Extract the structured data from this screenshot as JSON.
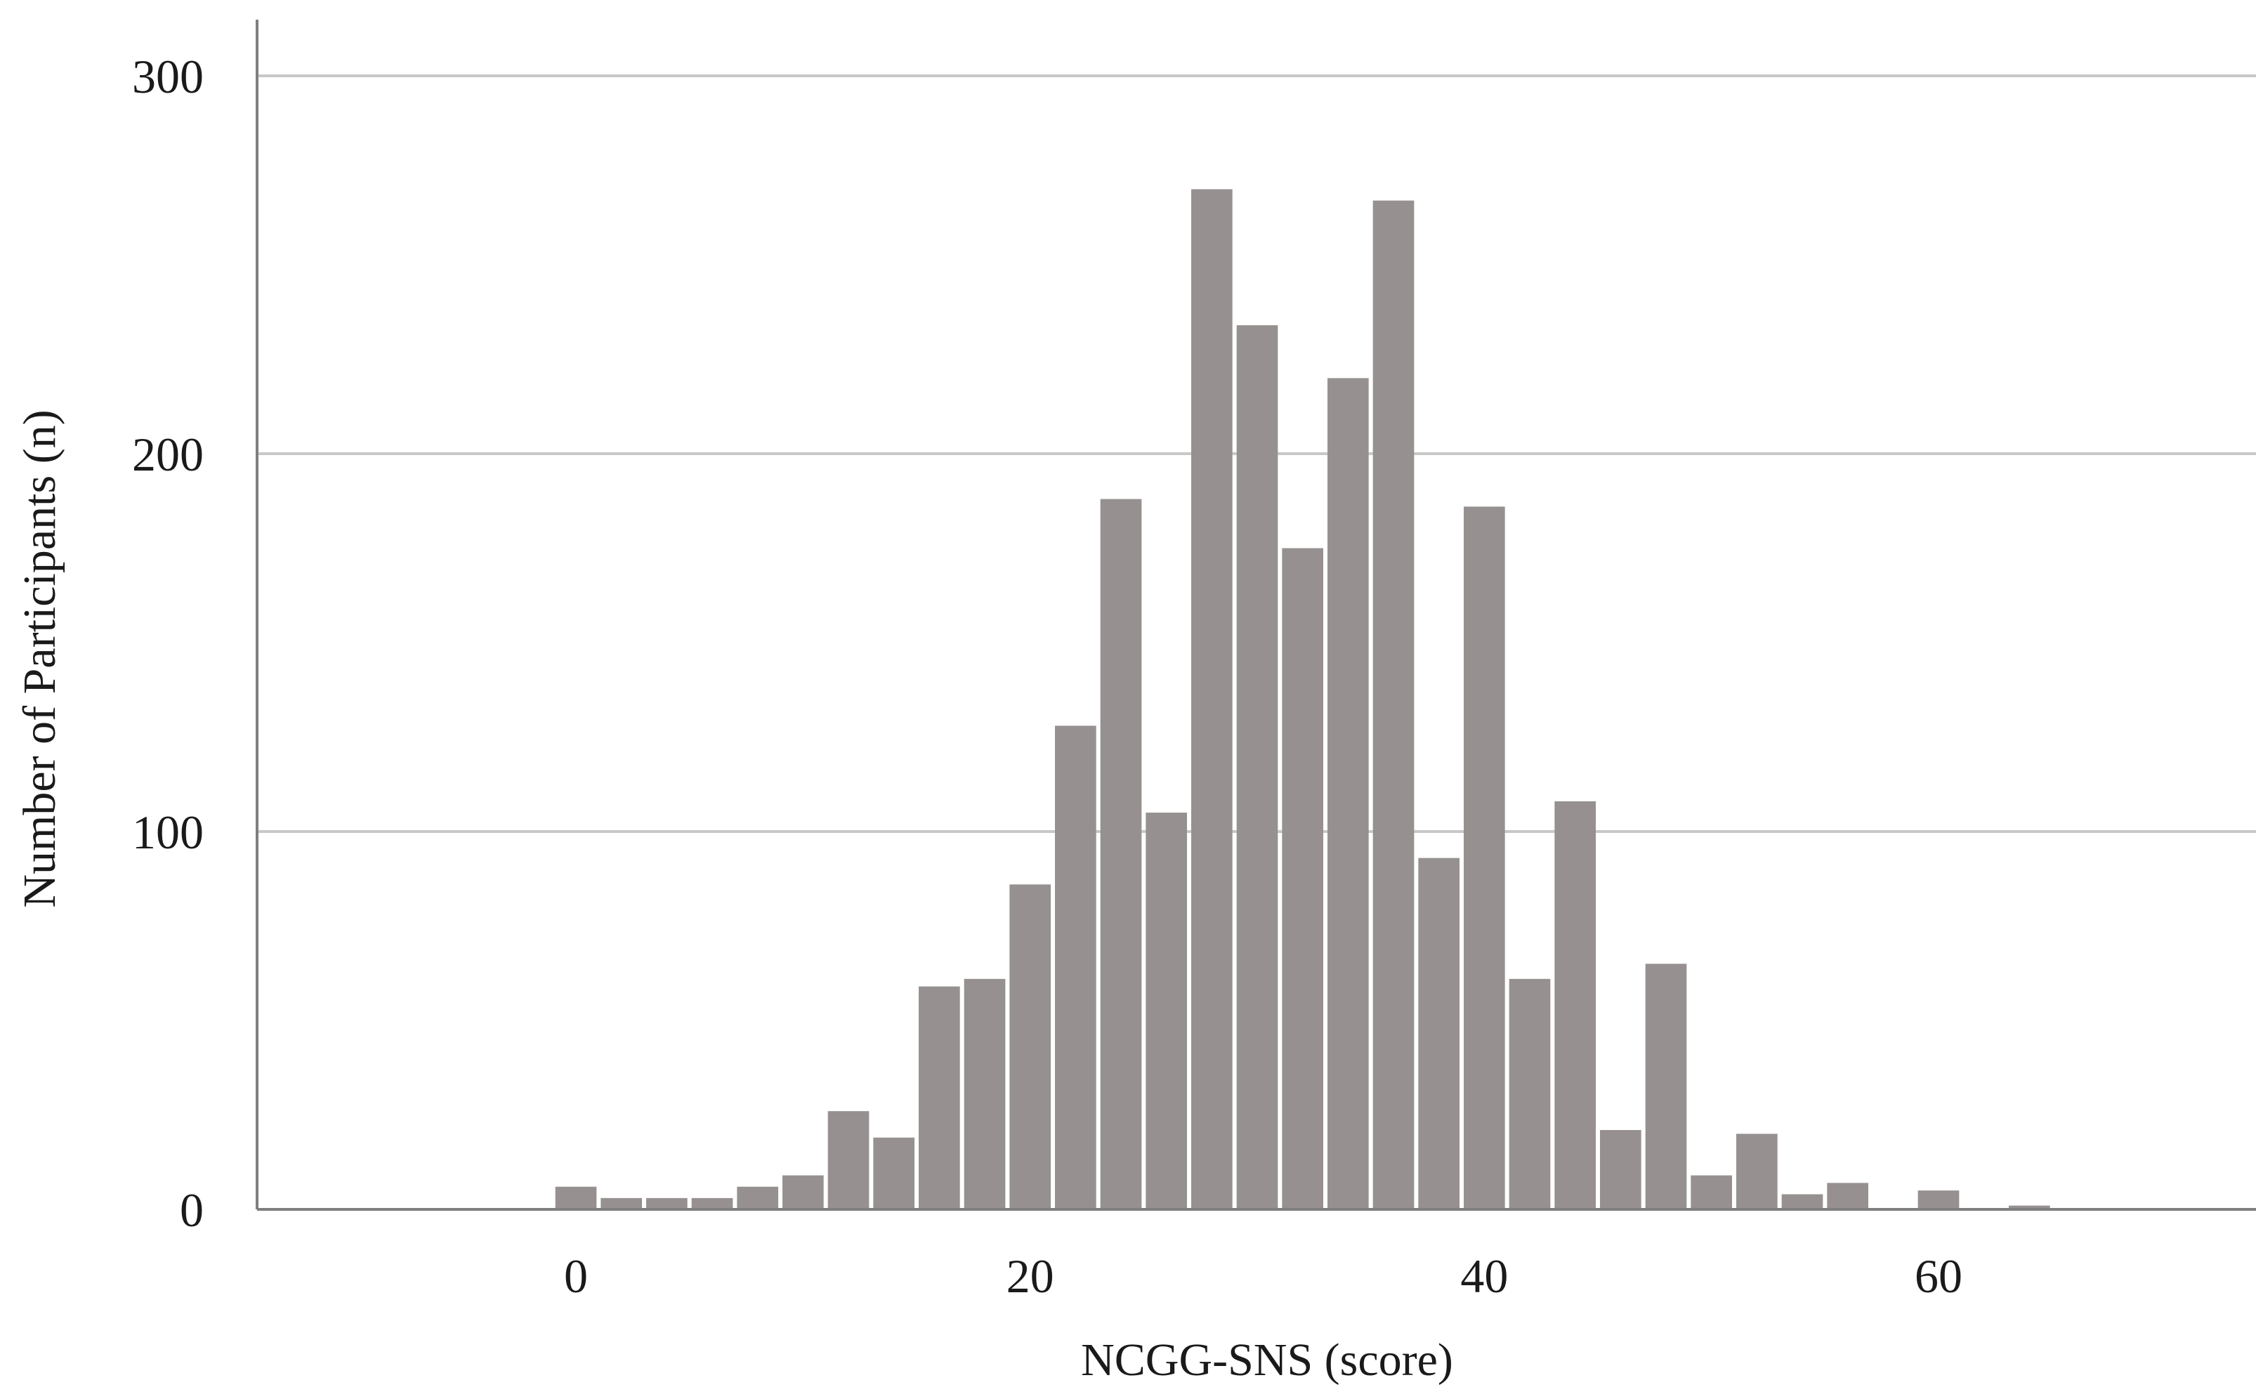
{
  "chart_data": {
    "type": "bar",
    "title": "",
    "xlabel": "NCGG-SNS (score)",
    "ylabel": "Number of Participants (n)",
    "xlim": [
      -14,
      74
    ],
    "ylim": [
      0,
      300
    ],
    "bin_width": 2,
    "x_ticks": [
      0,
      20,
      40,
      60
    ],
    "y_ticks": [
      0,
      100,
      200,
      300
    ],
    "grid": "horizontal",
    "bar_color": "#969190",
    "grid_color": "#c8c8c8",
    "axis_color": "#7f7f7f",
    "bins": [
      {
        "x": 0,
        "count": 6
      },
      {
        "x": 2,
        "count": 3
      },
      {
        "x": 4,
        "count": 3
      },
      {
        "x": 6,
        "count": 3
      },
      {
        "x": 8,
        "count": 6
      },
      {
        "x": 10,
        "count": 9
      },
      {
        "x": 12,
        "count": 26
      },
      {
        "x": 14,
        "count": 19
      },
      {
        "x": 16,
        "count": 59
      },
      {
        "x": 18,
        "count": 61
      },
      {
        "x": 20,
        "count": 86
      },
      {
        "x": 22,
        "count": 128
      },
      {
        "x": 24,
        "count": 188
      },
      {
        "x": 26,
        "count": 105
      },
      {
        "x": 28,
        "count": 270
      },
      {
        "x": 30,
        "count": 234
      },
      {
        "x": 32,
        "count": 175
      },
      {
        "x": 34,
        "count": 220
      },
      {
        "x": 36,
        "count": 267
      },
      {
        "x": 38,
        "count": 93
      },
      {
        "x": 40,
        "count": 186
      },
      {
        "x": 42,
        "count": 61
      },
      {
        "x": 44,
        "count": 108
      },
      {
        "x": 46,
        "count": 21
      },
      {
        "x": 48,
        "count": 65
      },
      {
        "x": 50,
        "count": 9
      },
      {
        "x": 52,
        "count": 20
      },
      {
        "x": 54,
        "count": 4
      },
      {
        "x": 56,
        "count": 7
      },
      {
        "x": 58,
        "count": 0
      },
      {
        "x": 60,
        "count": 5
      },
      {
        "x": 62,
        "count": 0
      },
      {
        "x": 64,
        "count": 1
      }
    ]
  }
}
